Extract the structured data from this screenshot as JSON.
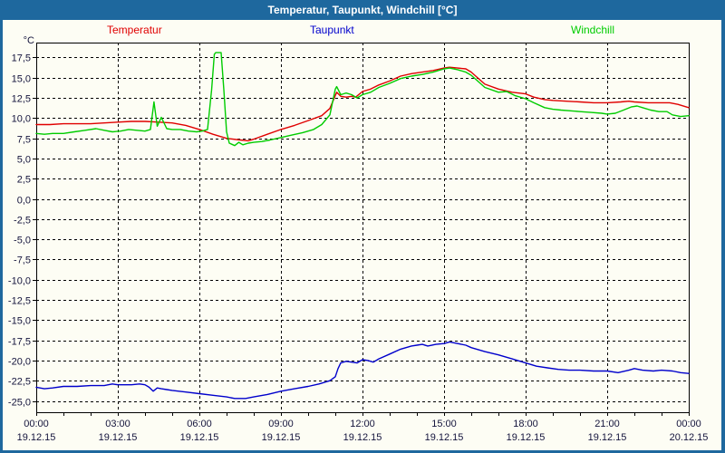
{
  "header": {
    "title": "Temperatur, Taupunkt, Windchill [°C]"
  },
  "colors": {
    "title_bar": "#1e689e",
    "frame_border": "#1e689e",
    "grid": "#000000",
    "axis_text": "#14143c",
    "background": "#fdfdf4"
  },
  "chart_data": {
    "type": "line",
    "title": "Temperatur, Taupunkt, Windchill [°C]",
    "y_unit": "°C",
    "xlim": [
      0,
      24
    ],
    "ylim": [
      -26.4,
      19.35
    ],
    "grid": "dashed",
    "legend_position": "top",
    "y_ticks": {
      "values": [
        17.5,
        15.0,
        12.5,
        10.0,
        7.5,
        5.0,
        2.5,
        0.0,
        -2.5,
        -5.0,
        -7.5,
        -10.0,
        -12.5,
        -15.0,
        -17.5,
        -20.0,
        -22.5,
        -25.0
      ],
      "labels": [
        "17,5",
        "15,0",
        "12,5",
        "10,0",
        "7,5",
        "5,0",
        "2,5",
        "0,0",
        "-2,5",
        "-5,0",
        "-7,5",
        "-10,0",
        "-12,5",
        "-15,0",
        "-17,5",
        "-20,0",
        "-22,5",
        "-25,0"
      ]
    },
    "x_ticks": {
      "hours": [
        0,
        3,
        6,
        9,
        12,
        15,
        18,
        21,
        24
      ],
      "times": [
        "00:00",
        "03:00",
        "06:00",
        "09:00",
        "12:00",
        "15:00",
        "18:00",
        "21:00",
        "00:00"
      ],
      "dates": [
        "19.12.15",
        "19.12.15",
        "19.12.15",
        "19.12.15",
        "19.12.15",
        "19.12.15",
        "19.12.15",
        "19.12.15",
        "20.12.15"
      ],
      "minor_tick_every_hours": 1
    },
    "series": [
      {
        "name": "Temperatur",
        "color": "#e00000",
        "points": [
          [
            0,
            9.2
          ],
          [
            0.5,
            9.2
          ],
          [
            1,
            9.3
          ],
          [
            1.5,
            9.3
          ],
          [
            2,
            9.3
          ],
          [
            2.5,
            9.4
          ],
          [
            3,
            9.5
          ],
          [
            3.5,
            9.6
          ],
          [
            4,
            9.6
          ],
          [
            4.5,
            9.5
          ],
          [
            5,
            9.4
          ],
          [
            5.5,
            9.1
          ],
          [
            6,
            8.6
          ],
          [
            6.5,
            8.0
          ],
          [
            7,
            7.5
          ],
          [
            7.5,
            7.3
          ],
          [
            7.8,
            7.2
          ],
          [
            8,
            7.4
          ],
          [
            8.5,
            8.0
          ],
          [
            9,
            8.6
          ],
          [
            9.5,
            9.1
          ],
          [
            10,
            9.7
          ],
          [
            10.5,
            10.3
          ],
          [
            10.8,
            11.2
          ],
          [
            11.05,
            13.2
          ],
          [
            11.2,
            12.7
          ],
          [
            11.4,
            12.6
          ],
          [
            11.6,
            12.7
          ],
          [
            11.75,
            12.6
          ],
          [
            12,
            13.3
          ],
          [
            12.3,
            13.6
          ],
          [
            12.6,
            14.1
          ],
          [
            13,
            14.6
          ],
          [
            13.4,
            15.2
          ],
          [
            13.8,
            15.5
          ],
          [
            14.2,
            15.7
          ],
          [
            14.6,
            15.9
          ],
          [
            15,
            16.2
          ],
          [
            15.2,
            16.3
          ],
          [
            15.5,
            16.2
          ],
          [
            15.8,
            16.1
          ],
          [
            16,
            15.7
          ],
          [
            16.3,
            14.8
          ],
          [
            16.5,
            14.2
          ],
          [
            17,
            13.6
          ],
          [
            17.5,
            13.2
          ],
          [
            18,
            13.0
          ],
          [
            18.3,
            12.6
          ],
          [
            18.7,
            12.3
          ],
          [
            19,
            12.2
          ],
          [
            19.5,
            12.1
          ],
          [
            20,
            12.0
          ],
          [
            20.5,
            11.9
          ],
          [
            21,
            11.9
          ],
          [
            21.5,
            12.0
          ],
          [
            21.8,
            12.1
          ],
          [
            22,
            12.0
          ],
          [
            22.5,
            11.9
          ],
          [
            23,
            11.9
          ],
          [
            23.3,
            11.9
          ],
          [
            23.6,
            11.7
          ],
          [
            24,
            11.3
          ]
        ]
      },
      {
        "name": "Taupunkt",
        "color": "#0000cc",
        "points": [
          [
            0,
            -23.3
          ],
          [
            0.3,
            -23.5
          ],
          [
            0.6,
            -23.4
          ],
          [
            1,
            -23.2
          ],
          [
            1.5,
            -23.2
          ],
          [
            2,
            -23.1
          ],
          [
            2.5,
            -23.1
          ],
          [
            2.8,
            -22.9
          ],
          [
            3,
            -23.0
          ],
          [
            3.5,
            -23.0
          ],
          [
            3.8,
            -22.9
          ],
          [
            4,
            -23.0
          ],
          [
            4.15,
            -23.3
          ],
          [
            4.3,
            -23.8
          ],
          [
            4.45,
            -23.4
          ],
          [
            4.6,
            -23.5
          ],
          [
            4.8,
            -23.6
          ],
          [
            5,
            -23.7
          ],
          [
            5.5,
            -23.9
          ],
          [
            6,
            -24.1
          ],
          [
            6.5,
            -24.3
          ],
          [
            7,
            -24.5
          ],
          [
            7.3,
            -24.7
          ],
          [
            7.7,
            -24.7
          ],
          [
            8,
            -24.5
          ],
          [
            8.5,
            -24.2
          ],
          [
            9,
            -23.8
          ],
          [
            9.5,
            -23.5
          ],
          [
            10,
            -23.2
          ],
          [
            10.4,
            -22.9
          ],
          [
            10.8,
            -22.5
          ],
          [
            11,
            -22.0
          ],
          [
            11.1,
            -21.0
          ],
          [
            11.2,
            -20.3
          ],
          [
            11.4,
            -20.1
          ],
          [
            11.6,
            -20.2
          ],
          [
            11.8,
            -20.3
          ],
          [
            12,
            -19.9
          ],
          [
            12.2,
            -20.0
          ],
          [
            12.4,
            -20.2
          ],
          [
            12.6,
            -19.8
          ],
          [
            13,
            -19.2
          ],
          [
            13.4,
            -18.6
          ],
          [
            13.8,
            -18.2
          ],
          [
            14,
            -18.1
          ],
          [
            14.2,
            -18.0
          ],
          [
            14.4,
            -18.2
          ],
          [
            14.7,
            -18.0
          ],
          [
            15,
            -17.9
          ],
          [
            15.2,
            -17.7
          ],
          [
            15.5,
            -17.9
          ],
          [
            15.8,
            -18.1
          ],
          [
            16,
            -18.4
          ],
          [
            16.5,
            -18.9
          ],
          [
            17,
            -19.3
          ],
          [
            17.5,
            -19.8
          ],
          [
            18,
            -20.3
          ],
          [
            18.4,
            -20.7
          ],
          [
            18.8,
            -20.9
          ],
          [
            19.2,
            -21.1
          ],
          [
            19.6,
            -21.2
          ],
          [
            20,
            -21.2
          ],
          [
            20.5,
            -21.3
          ],
          [
            21,
            -21.3
          ],
          [
            21.4,
            -21.5
          ],
          [
            21.8,
            -21.2
          ],
          [
            22,
            -21.0
          ],
          [
            22.3,
            -21.2
          ],
          [
            22.7,
            -21.3
          ],
          [
            23,
            -21.2
          ],
          [
            23.4,
            -21.3
          ],
          [
            23.7,
            -21.5
          ],
          [
            24,
            -21.6
          ]
        ]
      },
      {
        "name": "Windchill",
        "color": "#00cc00",
        "points": [
          [
            0,
            8.1
          ],
          [
            0.3,
            8.0
          ],
          [
            0.6,
            8.1
          ],
          [
            1,
            8.1
          ],
          [
            1.4,
            8.3
          ],
          [
            1.8,
            8.5
          ],
          [
            2.2,
            8.7
          ],
          [
            2.5,
            8.5
          ],
          [
            2.8,
            8.3
          ],
          [
            3.1,
            8.4
          ],
          [
            3.4,
            8.6
          ],
          [
            3.7,
            8.5
          ],
          [
            4,
            8.4
          ],
          [
            4.2,
            8.6
          ],
          [
            4.33,
            12.0
          ],
          [
            4.45,
            9.0
          ],
          [
            4.6,
            10.1
          ],
          [
            4.8,
            8.7
          ],
          [
            5,
            8.6
          ],
          [
            5.3,
            8.6
          ],
          [
            5.6,
            8.4
          ],
          [
            5.9,
            8.3
          ],
          [
            6.1,
            8.4
          ],
          [
            6.3,
            8.6
          ],
          [
            6.45,
            13.5
          ],
          [
            6.55,
            17.9
          ],
          [
            6.6,
            18.1
          ],
          [
            6.8,
            18.1
          ],
          [
            6.9,
            13.5
          ],
          [
            7,
            8.3
          ],
          [
            7.1,
            6.9
          ],
          [
            7.3,
            6.6
          ],
          [
            7.45,
            7.0
          ],
          [
            7.6,
            6.7
          ],
          [
            7.8,
            6.9
          ],
          [
            8,
            7.0
          ],
          [
            8.3,
            7.1
          ],
          [
            8.6,
            7.3
          ],
          [
            9,
            7.6
          ],
          [
            9.4,
            7.9
          ],
          [
            9.8,
            8.2
          ],
          [
            10.2,
            8.6
          ],
          [
            10.5,
            9.2
          ],
          [
            10.8,
            10.4
          ],
          [
            11,
            13.6
          ],
          [
            11.05,
            13.9
          ],
          [
            11.2,
            12.9
          ],
          [
            11.4,
            13.1
          ],
          [
            11.6,
            12.9
          ],
          [
            11.8,
            12.5
          ],
          [
            12,
            12.9
          ],
          [
            12.3,
            13.2
          ],
          [
            12.6,
            13.8
          ],
          [
            13,
            14.3
          ],
          [
            13.4,
            14.9
          ],
          [
            13.8,
            15.2
          ],
          [
            14.2,
            15.4
          ],
          [
            14.6,
            15.7
          ],
          [
            15,
            16.1
          ],
          [
            15.2,
            16.2
          ],
          [
            15.5,
            16.0
          ],
          [
            15.8,
            15.7
          ],
          [
            16,
            15.3
          ],
          [
            16.3,
            14.4
          ],
          [
            16.5,
            13.8
          ],
          [
            17,
            13.2
          ],
          [
            17.3,
            13.3
          ],
          [
            17.6,
            12.8
          ],
          [
            18,
            12.4
          ],
          [
            18.3,
            11.9
          ],
          [
            18.7,
            11.3
          ],
          [
            19,
            11.1
          ],
          [
            19.3,
            11.0
          ],
          [
            19.7,
            10.9
          ],
          [
            20,
            10.8
          ],
          [
            20.4,
            10.7
          ],
          [
            20.8,
            10.6
          ],
          [
            21,
            10.5
          ],
          [
            21.3,
            10.6
          ],
          [
            21.6,
            11.0
          ],
          [
            21.9,
            11.4
          ],
          [
            22.1,
            11.5
          ],
          [
            22.3,
            11.3
          ],
          [
            22.6,
            11.0
          ],
          [
            22.9,
            10.8
          ],
          [
            23.2,
            10.8
          ],
          [
            23.4,
            10.4
          ],
          [
            23.7,
            10.2
          ],
          [
            24,
            10.3
          ]
        ]
      }
    ]
  }
}
